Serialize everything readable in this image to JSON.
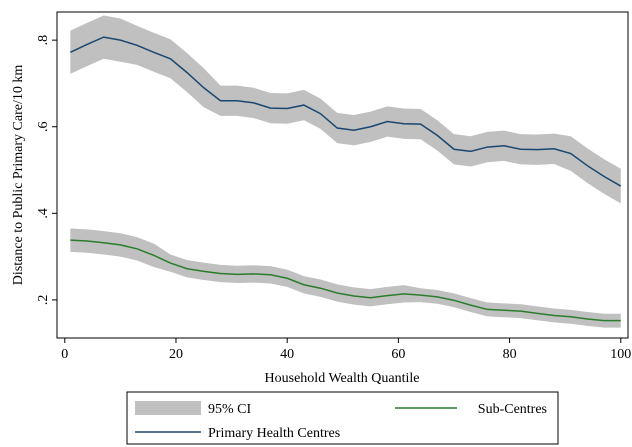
{
  "chart_data": {
    "type": "line",
    "x_label": "Household Wealth Quantile",
    "y_label": "Distance to Public Primary Care/10 km",
    "ci_name": "95% CI",
    "ci_color": "#c0c0c0",
    "x": [
      1,
      4,
      7,
      10,
      13,
      16,
      19,
      22,
      25,
      28,
      31,
      34,
      37,
      40,
      43,
      46,
      49,
      52,
      55,
      58,
      61,
      64,
      67,
      70,
      73,
      76,
      79,
      82,
      85,
      88,
      91,
      94,
      97,
      100
    ],
    "series": [
      {
        "name": "Primary Health Centres",
        "color": "#1a476f",
        "values": [
          0.772,
          0.79,
          0.807,
          0.8,
          0.788,
          0.772,
          0.757,
          0.725,
          0.69,
          0.66,
          0.66,
          0.655,
          0.643,
          0.642,
          0.65,
          0.63,
          0.597,
          0.592,
          0.6,
          0.612,
          0.607,
          0.606,
          0.58,
          0.548,
          0.543,
          0.553,
          0.556,
          0.548,
          0.547,
          0.549,
          0.538,
          0.51,
          0.485,
          0.463
        ],
        "ci_upper": [
          0.822,
          0.84,
          0.857,
          0.85,
          0.833,
          0.817,
          0.802,
          0.77,
          0.735,
          0.695,
          0.695,
          0.69,
          0.678,
          0.677,
          0.685,
          0.665,
          0.632,
          0.627,
          0.635,
          0.647,
          0.642,
          0.641,
          0.615,
          0.583,
          0.578,
          0.588,
          0.591,
          0.583,
          0.582,
          0.584,
          0.578,
          0.55,
          0.525,
          0.503
        ],
        "ci_lower": [
          0.722,
          0.74,
          0.757,
          0.75,
          0.743,
          0.727,
          0.712,
          0.68,
          0.645,
          0.625,
          0.625,
          0.62,
          0.608,
          0.607,
          0.615,
          0.595,
          0.562,
          0.557,
          0.565,
          0.577,
          0.572,
          0.571,
          0.545,
          0.513,
          0.508,
          0.518,
          0.521,
          0.513,
          0.512,
          0.514,
          0.498,
          0.47,
          0.445,
          0.423
        ]
      },
      {
        "name": "Sub-Centres",
        "color": "#2a7d2a",
        "values": [
          0.338,
          0.336,
          0.332,
          0.327,
          0.318,
          0.303,
          0.285,
          0.272,
          0.266,
          0.261,
          0.259,
          0.26,
          0.258,
          0.25,
          0.235,
          0.227,
          0.216,
          0.209,
          0.205,
          0.21,
          0.214,
          0.211,
          0.207,
          0.199,
          0.188,
          0.178,
          0.176,
          0.174,
          0.169,
          0.164,
          0.161,
          0.156,
          0.152,
          0.152
        ],
        "ci_upper": [
          0.365,
          0.363,
          0.359,
          0.354,
          0.345,
          0.33,
          0.305,
          0.292,
          0.286,
          0.281,
          0.279,
          0.28,
          0.278,
          0.27,
          0.255,
          0.247,
          0.236,
          0.229,
          0.225,
          0.23,
          0.234,
          0.227,
          0.223,
          0.215,
          0.204,
          0.194,
          0.192,
          0.19,
          0.185,
          0.18,
          0.177,
          0.172,
          0.168,
          0.168
        ],
        "ci_lower": [
          0.311,
          0.309,
          0.305,
          0.3,
          0.291,
          0.276,
          0.265,
          0.252,
          0.246,
          0.241,
          0.239,
          0.24,
          0.238,
          0.23,
          0.215,
          0.207,
          0.196,
          0.189,
          0.185,
          0.19,
          0.194,
          0.195,
          0.191,
          0.183,
          0.172,
          0.162,
          0.16,
          0.158,
          0.153,
          0.148,
          0.145,
          0.14,
          0.136,
          0.136
        ]
      }
    ],
    "xlim": [
      -1.4,
      101.3
    ],
    "xticks": [
      0,
      20,
      40,
      60,
      80,
      100
    ],
    "ylim": [
      0.112,
      0.865
    ],
    "yticks": [
      {
        "value": 0.2,
        "label": ".2"
      },
      {
        "value": 0.4,
        "label": ".4"
      },
      {
        "value": 0.6,
        "label": ".6"
      },
      {
        "value": 0.8,
        "label": ".8"
      }
    ]
  }
}
